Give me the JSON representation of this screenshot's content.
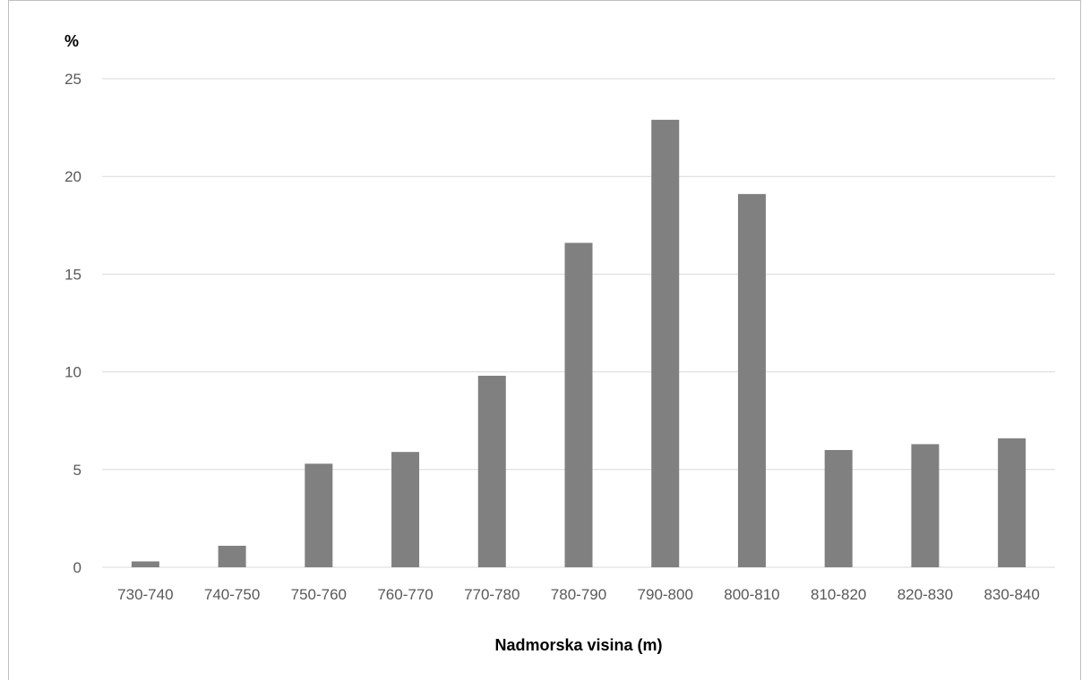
{
  "chart_data": {
    "type": "bar",
    "title": "",
    "xlabel": "Nadmorska visina (m)",
    "ylabel": "%",
    "categories": [
      "730-740",
      "740-750",
      "750-760",
      "760-770",
      "770-780",
      "780-790",
      "790-800",
      "800-810",
      "810-820",
      "820-830",
      "830-840"
    ],
    "values": [
      0.3,
      1.1,
      5.3,
      5.9,
      9.8,
      16.6,
      22.9,
      19.1,
      6.0,
      6.3,
      6.6
    ],
    "yticks": [
      0,
      5,
      10,
      15,
      20,
      25
    ],
    "ylim": [
      0,
      25
    ],
    "grid": true,
    "legend": "none",
    "bar_color": "#808080",
    "grid_color": "#d9d9d9"
  }
}
